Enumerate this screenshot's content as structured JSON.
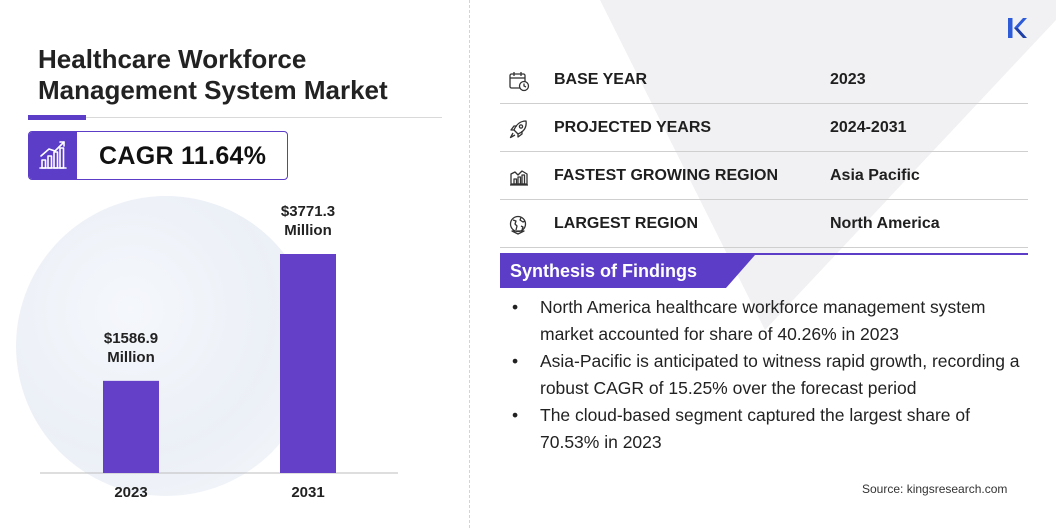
{
  "title": "Healthcare Workforce Management System Market",
  "cagr": "CAGR 11.64%",
  "colors": {
    "accent": "#5b3dc8",
    "bar": "#6440c9"
  },
  "icons": {
    "cagr": "growth-chart-icon",
    "logo": "kingsresearch-logo-icon"
  },
  "chart_data": {
    "type": "bar",
    "categories": [
      "2023",
      "2031"
    ],
    "values": [
      1586.9,
      3771.3
    ],
    "value_labels": [
      [
        "$1586.9",
        "Million"
      ],
      [
        "$3771.3",
        "Million"
      ]
    ],
    "unit": "Million",
    "title": "",
    "xlabel": "",
    "ylabel": "",
    "ylim": [
      0,
      3771.3
    ],
    "grid": false,
    "legend": "none"
  },
  "info_rows": [
    {
      "key": "BASE YEAR",
      "value": "2023",
      "icon": "calendar-icon"
    },
    {
      "key": "PROJECTED YEARS",
      "value": "2024-2031",
      "icon": "rocket-icon"
    },
    {
      "key": "FASTEST GROWING REGION",
      "value": "Asia Pacific",
      "icon": "region-growth-icon"
    },
    {
      "key": "LARGEST REGION",
      "value": "North America",
      "icon": "globe-icon"
    }
  ],
  "synthesis": {
    "title": "Synthesis of Findings",
    "items": [
      "North America healthcare workforce management system market accounted for share of 40.26% in 2023",
      "Asia-Pacific is anticipated to witness rapid growth, recording a robust CAGR of 15.25% over the forecast period",
      "The cloud-based segment captured the largest share of 70.53% in 2023"
    ]
  },
  "source": "Source:  kingsresearch.com"
}
